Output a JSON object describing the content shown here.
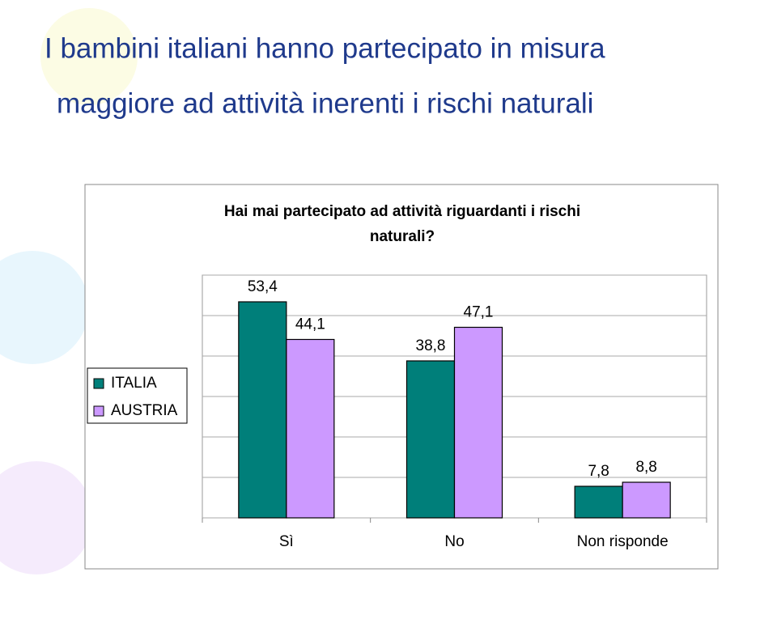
{
  "slide": {
    "title": [
      "I bambini italiani hanno partecipato in misura",
      "maggiore ad attività inerenti i rischi naturali"
    ]
  },
  "chart_data": {
    "type": "bar",
    "title": [
      "Hai mai partecipato ad attività riguardanti i rischi",
      "naturali?"
    ],
    "categories": [
      "Sì",
      "No",
      "Non risponde"
    ],
    "series": [
      {
        "name": "ITALIA",
        "color": "#007f7a",
        "values": [
          53.4,
          38.8,
          7.8
        ],
        "value_labels": [
          "53,4",
          "38,8",
          "7,8"
        ]
      },
      {
        "name": "AUSTRIA",
        "color": "#cc99ff",
        "values": [
          44.1,
          47.1,
          8.8
        ],
        "value_labels": [
          "44,1",
          "47,1",
          "8,8"
        ]
      }
    ],
    "ylim": [
      0,
      60
    ],
    "yticks": [
      0,
      10,
      20,
      30,
      40,
      50,
      60
    ],
    "grid": true,
    "legend": "left"
  }
}
